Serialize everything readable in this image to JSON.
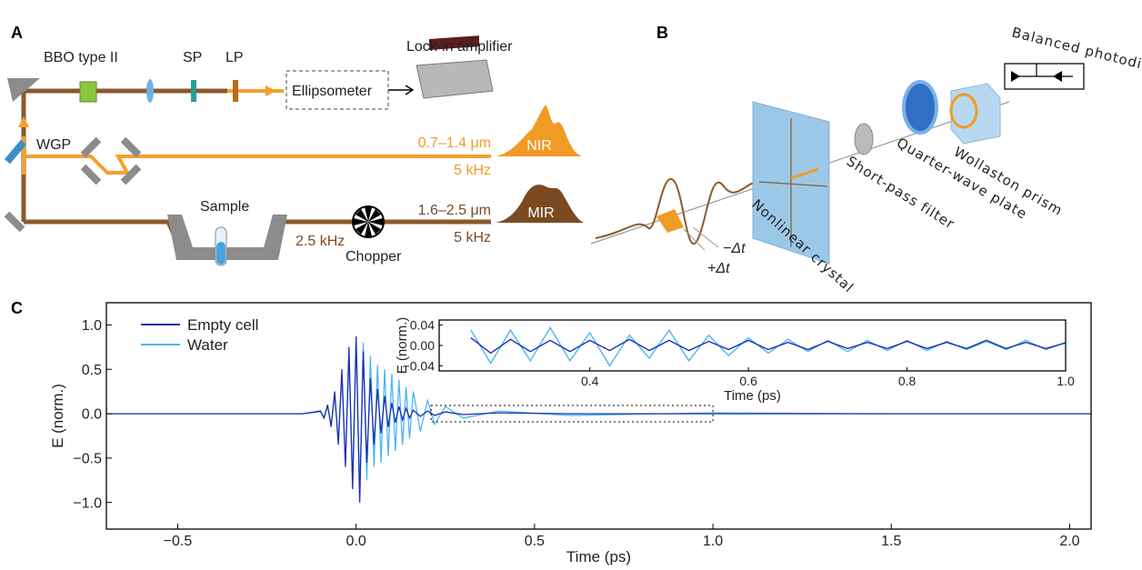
{
  "panels": {
    "a": "A",
    "b": "B",
    "c": "C"
  },
  "diagram_a": {
    "bbo": "BBO type II",
    "sp": "SP",
    "lp": "LP",
    "lockin": "Lock-in amplifier",
    "ellipsometer": "Ellipsometer",
    "wgp": "WGP",
    "nir_range": "0.7–1.4 μm",
    "nir_rate": "5 kHz",
    "nir": "NIR",
    "mir_range": "1.6–2.5 μm",
    "mir_rate": "5 kHz",
    "mir": "MIR",
    "sample": "Sample",
    "chop_rate": "2.5 kHz",
    "chopper": "Chopper"
  },
  "diagram_b": {
    "photodiodes": "Balanced photodiodes",
    "wollaston": "Wollaston prism",
    "qwp": "Quarter-wave plate",
    "filter": "Short-pass filter",
    "crystal": "Nonlinear crystal",
    "minus_dt": "−Δt",
    "plus_dt": "+Δt"
  },
  "chart_data": [
    {
      "type": "line",
      "xlabel": "Time (ps)",
      "ylabel": "E (norm.)",
      "xlim": [
        -0.7,
        2.06
      ],
      "ylim": [
        -1.3,
        1.25
      ],
      "xticks": [
        {
          "value": -0.5,
          "label": "−0.5"
        },
        {
          "value": 0,
          "label": "0.0"
        },
        {
          "value": 0.5,
          "label": "0.5"
        },
        {
          "value": 1,
          "label": "1.0"
        },
        {
          "value": 1.5,
          "label": "1.5"
        },
        {
          "value": 2,
          "label": "2.0"
        }
      ],
      "yticks": [
        {
          "value": -1,
          "label": "−1.0"
        },
        {
          "value": -0.5,
          "label": "−0.5"
        },
        {
          "value": 0,
          "label": "0.0"
        },
        {
          "value": 0.5,
          "label": "0.5"
        },
        {
          "value": 1,
          "label": "1.0"
        }
      ],
      "x": [
        -0.7,
        -0.15,
        -0.1,
        -0.09,
        -0.08,
        -0.07,
        -0.06,
        -0.05,
        -0.04,
        -0.03,
        -0.02,
        -0.01,
        0,
        0.01,
        0.02,
        0.03,
        0.04,
        0.05,
        0.06,
        0.07,
        0.08,
        0.09,
        0.1,
        0.11,
        0.12,
        0.13,
        0.14,
        0.15,
        0.16,
        0.18,
        0.2,
        0.22,
        0.25,
        0.3,
        0.4,
        0.6,
        1.0,
        1.5,
        2.06
      ],
      "series": [
        {
          "name": "Empty cell",
          "color": "#1c2fb0",
          "values": [
            0,
            0,
            0.03,
            -0.05,
            0.1,
            -0.15,
            0.25,
            -0.35,
            0.5,
            -0.6,
            0.75,
            -0.85,
            0.87,
            -1.0,
            0.7,
            -0.55,
            0.4,
            -0.35,
            0.28,
            -0.22,
            0.2,
            -0.15,
            0.12,
            -0.1,
            0.08,
            -0.07,
            0.06,
            -0.05,
            0.04,
            -0.03,
            0.03,
            -0.02,
            0.02,
            -0.01,
            0.01,
            0,
            0,
            0,
            0
          ]
        },
        {
          "name": "Water",
          "color": "#4cb8ee",
          "values": [
            0,
            0,
            0.02,
            -0.04,
            0.08,
            -0.12,
            0.2,
            -0.3,
            0.42,
            -0.55,
            0.65,
            -0.78,
            0.85,
            -0.9,
            0.8,
            -0.75,
            0.65,
            -0.6,
            0.55,
            -0.55,
            0.5,
            -0.48,
            0.45,
            -0.42,
            0.38,
            -0.35,
            0.3,
            -0.28,
            0.25,
            -0.2,
            0.15,
            -0.12,
            0.08,
            -0.05,
            0.03,
            -0.02,
            0.01,
            0,
            0
          ]
        }
      ]
    },
    {
      "type": "line",
      "xlabel": "Time (ps)",
      "ylabel": "E (norm.)",
      "xlim": [
        0.21,
        1.0
      ],
      "ylim": [
        -0.05,
        0.05
      ],
      "xticks": [
        0.4,
        0.6,
        0.8,
        {
          "value": 1,
          "label": "1.0"
        }
      ],
      "yticks": [
        {
          "value": 0.04,
          "label": "0.04"
        },
        {
          "value": 0,
          "label": "0.00"
        },
        {
          "value": -0.04,
          "label": "−0.04"
        }
      ],
      "x": [
        0.25,
        0.275,
        0.3,
        0.325,
        0.35,
        0.375,
        0.4,
        0.425,
        0.45,
        0.475,
        0.5,
        0.525,
        0.55,
        0.575,
        0.6,
        0.625,
        0.65,
        0.675,
        0.7,
        0.725,
        0.75,
        0.775,
        0.8,
        0.825,
        0.85,
        0.875,
        0.9,
        0.925,
        0.95,
        0.975,
        1.0
      ],
      "series": [
        {
          "name": "Empty cell",
          "color": "#1c2fb0",
          "values": [
            0.015,
            -0.015,
            0.012,
            -0.012,
            0.01,
            -0.012,
            0.01,
            -0.01,
            0.012,
            -0.01,
            0.01,
            -0.01,
            0.008,
            -0.008,
            0.01,
            -0.008,
            0.006,
            -0.008,
            0.008,
            -0.006,
            0.006,
            -0.006,
            0.008,
            -0.006,
            0.006,
            -0.006,
            0.01,
            -0.006,
            0.006,
            -0.006,
            0.005
          ]
        },
        {
          "name": "Water",
          "color": "#4cb8ee",
          "values": [
            0.03,
            -0.035,
            0.03,
            -0.03,
            0.035,
            -0.03,
            0.025,
            -0.04,
            0.02,
            -0.025,
            0.03,
            -0.03,
            0.02,
            -0.02,
            0.015,
            -0.015,
            0.012,
            -0.012,
            0.01,
            -0.012,
            0.01,
            -0.01,
            0.01,
            -0.01,
            0.008,
            -0.008,
            0.008,
            -0.008,
            0.01,
            -0.008,
            0.006
          ]
        }
      ]
    }
  ]
}
